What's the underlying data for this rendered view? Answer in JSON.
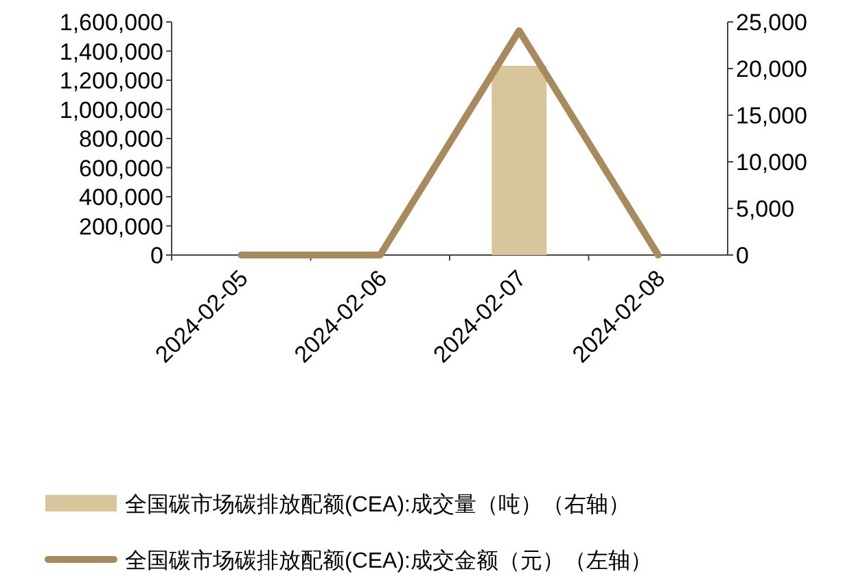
{
  "chart_data": {
    "type": "bar",
    "categories": [
      "2024-02-05",
      "2024-02-06",
      "2024-02-07",
      "2024-02-08"
    ],
    "series": [
      {
        "name": "全国碳市场碳排放配额(CEA):成交量（吨）（右轴）",
        "axis": "y2",
        "color": "#d8c59b",
        "values": [
          0,
          0,
          20300,
          0
        ]
      },
      {
        "name": "全国碳市场碳排放配额(CEA):成交金额（元）（左轴）",
        "type": "line",
        "color": "#a88a5f",
        "values": [
          0,
          0,
          1540000,
          0
        ]
      }
    ],
    "ylim": [
      0,
      1600000
    ],
    "yticks": [
      {
        "value": 0,
        "label": "0"
      },
      {
        "value": 200000,
        "label": "200,000"
      },
      {
        "value": 400000,
        "label": "400,000"
      },
      {
        "value": 600000,
        "label": "600,000"
      },
      {
        "value": 800000,
        "label": "800,000"
      },
      {
        "value": 1000000,
        "label": "1,000,000"
      },
      {
        "value": 1200000,
        "label": "1,200,000"
      },
      {
        "value": 1400000,
        "label": "1,400,000"
      },
      {
        "value": 1600000,
        "label": "1,600,000"
      }
    ],
    "y2lim": [
      0,
      25000
    ],
    "y2ticks": [
      {
        "value": 0,
        "label": "0"
      },
      {
        "value": 5000,
        "label": "5,000"
      },
      {
        "value": 10000,
        "label": "10,000"
      },
      {
        "value": 15000,
        "label": "15,000"
      },
      {
        "value": 20000,
        "label": "20,000"
      },
      {
        "value": 25000,
        "label": "25,000"
      }
    ],
    "legend": "bottom",
    "grid": false
  }
}
